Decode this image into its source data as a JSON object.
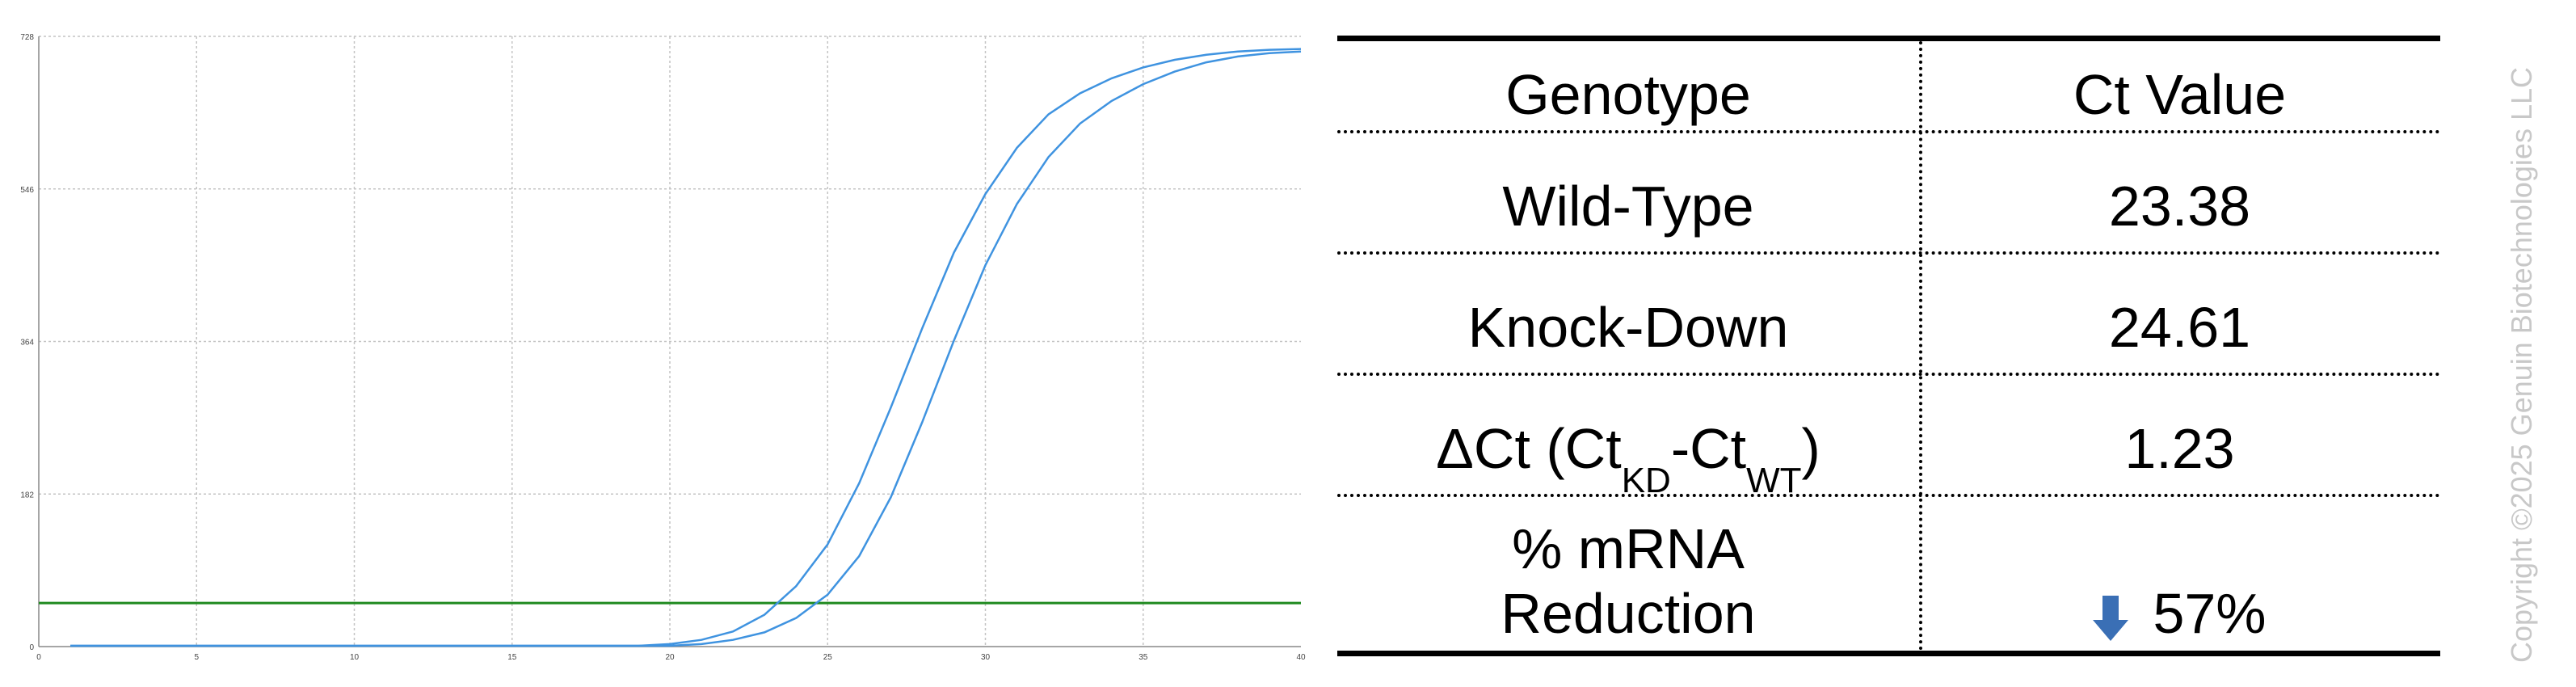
{
  "chart_data": {
    "type": "line",
    "title": "",
    "xlabel": "",
    "ylabel": "",
    "xlim": [
      0,
      40
    ],
    "ylim": [
      0,
      728
    ],
    "x_ticks": [
      0,
      5,
      10,
      15,
      20,
      25,
      30,
      35,
      40
    ],
    "y_ticks": [
      0,
      182,
      364,
      546,
      728
    ],
    "grid": true,
    "threshold": {
      "y": 52,
      "color": "#1f8a1f"
    },
    "series_color": "#3f93e0",
    "series": [
      {
        "values": [
          [
            1,
            1
          ],
          [
            19,
            1
          ],
          [
            20,
            3
          ],
          [
            21,
            8
          ],
          [
            22,
            18
          ],
          [
            23,
            38
          ],
          [
            24,
            72
          ],
          [
            25,
            122
          ],
          [
            26,
            195
          ],
          [
            27,
            285
          ],
          [
            28,
            380
          ],
          [
            29,
            470
          ],
          [
            30,
            540
          ],
          [
            31,
            595
          ],
          [
            32,
            635
          ],
          [
            33,
            660
          ],
          [
            34,
            678
          ],
          [
            35,
            691
          ],
          [
            36,
            700
          ],
          [
            37,
            706
          ],
          [
            38,
            710
          ],
          [
            39,
            712
          ],
          [
            40,
            713
          ]
        ]
      },
      {
        "values": [
          [
            1,
            1
          ],
          [
            20,
            1
          ],
          [
            21,
            3
          ],
          [
            22,
            8
          ],
          [
            23,
            17
          ],
          [
            24,
            34
          ],
          [
            25,
            62
          ],
          [
            26,
            108
          ],
          [
            27,
            178
          ],
          [
            28,
            268
          ],
          [
            29,
            365
          ],
          [
            30,
            455
          ],
          [
            31,
            528
          ],
          [
            32,
            584
          ],
          [
            33,
            624
          ],
          [
            34,
            651
          ],
          [
            35,
            671
          ],
          [
            36,
            686
          ],
          [
            37,
            697
          ],
          [
            38,
            704
          ],
          [
            39,
            708
          ],
          [
            40,
            710
          ]
        ]
      }
    ]
  },
  "table": {
    "header": {
      "genotype": "Genotype",
      "ct_value": "Ct Value"
    },
    "rows": {
      "wild_type": {
        "label": "Wild-Type",
        "value": "23.38"
      },
      "knock_down": {
        "label": "Knock-Down",
        "value": "24.61"
      },
      "delta_ct": {
        "prefix": "ΔCt (Ct",
        "sub1": "KD",
        "mid": "-Ct",
        "sub2": "WT",
        "suffix": ")",
        "value": "1.23"
      },
      "reduction": {
        "line1": "% mRNA",
        "line2": "Reduction",
        "value": "57%"
      }
    }
  },
  "icons": {
    "reduction_arrow": "arrow-down-icon",
    "arrow_color": "#3a6fb5"
  },
  "copyright": "Copyright ©2025 Genuin Biotechnologies LLC"
}
